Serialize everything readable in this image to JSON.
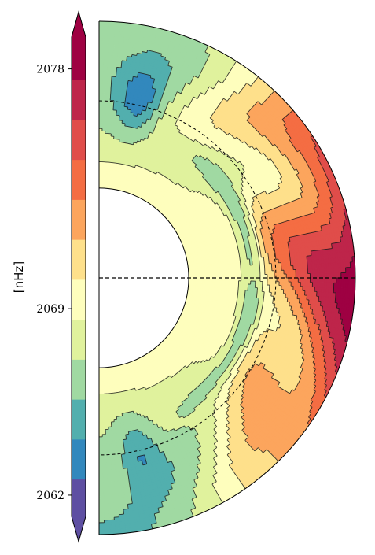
{
  "chart_data": {
    "type": "heatmap",
    "subtype": "solar-meridional-contour",
    "colorbar": {
      "label": "[nHz]",
      "ticks": [
        2062,
        2069,
        2078
      ],
      "range": [
        2061.2,
        2079.2
      ],
      "extend": "both",
      "levels": [
        {
          "lo": 2061.2,
          "hi": 2062.6,
          "color": "#5e4fa2"
        },
        {
          "lo": 2062.6,
          "hi": 2064.1,
          "color": "#3288bd"
        },
        {
          "lo": 2064.1,
          "hi": 2065.6,
          "color": "#52afae"
        },
        {
          "lo": 2065.6,
          "hi": 2067.1,
          "color": "#a0d9a2"
        },
        {
          "lo": 2067.1,
          "hi": 2068.6,
          "color": "#e0f29d"
        },
        {
          "lo": 2068.6,
          "hi": 2070.1,
          "color": "#fefebd"
        },
        {
          "lo": 2070.1,
          "hi": 2071.6,
          "color": "#fee08b"
        },
        {
          "lo": 2071.6,
          "hi": 2073.1,
          "color": "#fca55d"
        },
        {
          "lo": 2073.1,
          "hi": 2074.6,
          "color": "#f46d43"
        },
        {
          "lo": 2074.6,
          "hi": 2076.1,
          "color": "#e04d4a"
        },
        {
          "lo": 2076.1,
          "hi": 2077.6,
          "color": "#be254a"
        },
        {
          "lo": 2077.6,
          "hi": 2079.2,
          "color": "#9e0142"
        }
      ],
      "under_color": "#5e4fa2",
      "over_color": "#9e0142"
    },
    "domain": {
      "inner_radius": 0.35,
      "outer_radius": 1.0,
      "tachocline_radius": 0.69,
      "latitude_range": [
        -90,
        90
      ],
      "equator_line": "dashed"
    },
    "regions": [
      {
        "name": "outer-equatorial-band",
        "value": 2078.4,
        "r": [
          0.87,
          1.0
        ],
        "lat": [
          -35,
          38
        ]
      },
      {
        "name": "outer-midlat-north",
        "value": 2076.8,
        "r": [
          0.8,
          1.0
        ],
        "lat": [
          35,
          60
        ]
      },
      {
        "name": "outer-midlat-south",
        "value": 2076.8,
        "r": [
          0.8,
          1.0
        ],
        "lat": [
          -65,
          -32
        ]
      },
      {
        "name": "polar-cap-north",
        "value": 2064.9,
        "r": [
          0.55,
          0.85
        ],
        "lat": [
          68,
          84
        ]
      },
      {
        "name": "polar-cap-south",
        "value": 2064.9,
        "r": [
          0.55,
          0.8
        ],
        "lat": [
          -80,
          -68
        ]
      },
      {
        "name": "near-tachocline-jet-north",
        "value": 2064.9,
        "r": [
          0.55,
          0.68
        ],
        "lat": [
          8,
          40
        ]
      },
      {
        "name": "near-tachocline-jet-south",
        "value": 2064.9,
        "r": [
          0.55,
          0.68
        ],
        "lat": [
          -40,
          -8
        ]
      }
    ]
  }
}
